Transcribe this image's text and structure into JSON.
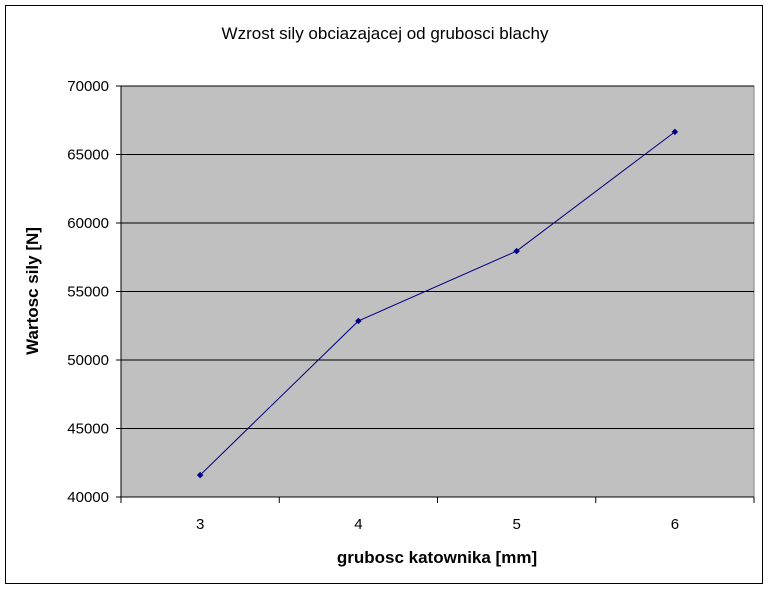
{
  "chart_data": {
    "type": "line",
    "title": "Wzrost sily obciazajacej od grubosci blachy",
    "xlabel": "grubosc katownika [mm]",
    "ylabel": "Wartosc sily [N]",
    "categories": [
      "3",
      "4",
      "5",
      "6"
    ],
    "series": [
      {
        "values": [
          41600,
          52850,
          57950,
          66650
        ]
      }
    ],
    "ylim": [
      40000,
      70000
    ],
    "y_ticks": [
      "40000",
      "45000",
      "50000",
      "55000",
      "60000",
      "65000",
      "70000"
    ],
    "grid": true,
    "plot_background": "#c0c0c0",
    "line_color": "#000080",
    "legend": "none"
  }
}
